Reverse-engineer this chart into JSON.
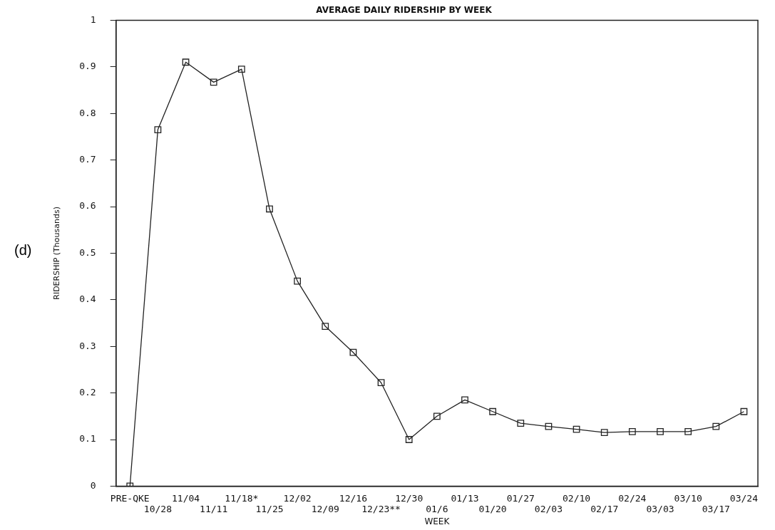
{
  "chart_data": {
    "type": "line",
    "title": "AVERAGE DAILY RIDERSHIP BY WEEK",
    "xlabel": "WEEK",
    "ylabel": "RIDERSHIP (Thousands)",
    "annotations": [
      "(d)"
    ],
    "categories": [
      "PRE-QKE",
      "10/28",
      "11/04",
      "11/11",
      "11/18*",
      "11/25",
      "12/02",
      "12/09",
      "12/16",
      "12/23**",
      "12/30",
      "01/6",
      "01/13",
      "01/20",
      "01/27",
      "02/03",
      "02/10",
      "02/17",
      "02/24",
      "03/03",
      "03/10",
      "03/17",
      "03/24"
    ],
    "series": [
      {
        "color": "#222222",
        "values": [
          0,
          0.765,
          0.91,
          0.867,
          0.895,
          0.595,
          0.44,
          0.343,
          0.287,
          0.222,
          0.1,
          0.15,
          0.185,
          0.16,
          0.135,
          0.128,
          0.122,
          0.115,
          0.117,
          0.117,
          0.117,
          0.128,
          0.16
        ]
      }
    ],
    "ylim": [
      0,
      1
    ],
    "yticks": [
      0,
      0.1,
      0.2,
      0.3,
      0.4,
      0.5,
      0.6,
      0.7,
      0.8,
      0.9,
      1
    ],
    "grid": false,
    "legend": false,
    "marker": "square",
    "line_style": "solid"
  }
}
